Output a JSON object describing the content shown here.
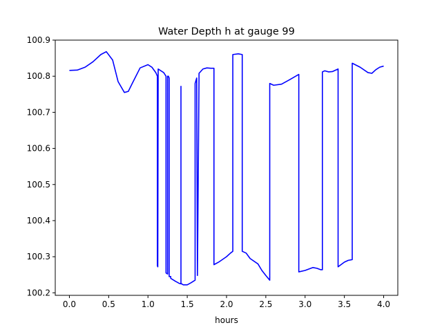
{
  "chart_data": {
    "type": "line",
    "title": "Water Depth h at gauge 99",
    "xlabel": "hours",
    "ylabel": "",
    "xlim": [
      -0.18,
      4.18
    ],
    "ylim": [
      100.193,
      100.9
    ],
    "grid": false,
    "legend": "none",
    "xticks": [
      0.0,
      0.5,
      1.0,
      1.5,
      2.0,
      2.5,
      3.0,
      3.5,
      4.0
    ],
    "xtick_labels": [
      "0.0",
      "0.5",
      "1.0",
      "1.5",
      "2.0",
      "2.5",
      "3.0",
      "3.5",
      "4.0"
    ],
    "yticks": [
      100.2,
      100.3,
      100.4,
      100.5,
      100.6,
      100.7,
      100.8,
      100.9
    ],
    "ytick_labels": [
      "100.2",
      "100.3",
      "100.4",
      "100.5",
      "100.6",
      "100.7",
      "100.8",
      "100.9"
    ],
    "series": [
      {
        "color": "#0000ff",
        "x": [
          0.0,
          0.1,
          0.2,
          0.3,
          0.4,
          0.47,
          0.55,
          0.62,
          0.7,
          0.75,
          0.8,
          0.9,
          1.0,
          1.05,
          1.1,
          1.12,
          1.12,
          1.125,
          1.13,
          1.13,
          1.2,
          1.23,
          1.23,
          1.25,
          1.25,
          1.26,
          1.27,
          1.27,
          1.29,
          1.29,
          1.35,
          1.4,
          1.42,
          1.42,
          1.42,
          1.45,
          1.5,
          1.55,
          1.6,
          1.6,
          1.62,
          1.63,
          1.63,
          1.65,
          1.65,
          1.7,
          1.75,
          1.8,
          1.84,
          1.84,
          1.9,
          2.0,
          2.05,
          2.08,
          2.08,
          2.15,
          2.2,
          2.2,
          2.25,
          2.3,
          2.4,
          2.45,
          2.5,
          2.55,
          2.55,
          2.6,
          2.7,
          2.8,
          2.92,
          2.92,
          3.0,
          3.1,
          3.15,
          3.2,
          3.22,
          3.22,
          3.25,
          3.3,
          3.35,
          3.42,
          3.42,
          3.5,
          3.55,
          3.6,
          3.6,
          3.7,
          3.8,
          3.85,
          3.9,
          3.95,
          4.0
        ],
        "y": [
          100.816,
          100.817,
          100.825,
          100.84,
          100.86,
          100.868,
          100.845,
          100.785,
          100.755,
          100.758,
          100.78,
          100.823,
          100.832,
          100.825,
          100.81,
          100.8,
          100.275,
          100.272,
          100.82,
          100.82,
          100.81,
          100.8,
          100.255,
          100.252,
          100.8,
          100.8,
          100.795,
          100.245,
          100.245,
          100.24,
          100.232,
          100.226,
          100.225,
          100.772,
          100.226,
          100.222,
          100.222,
          100.228,
          100.235,
          100.78,
          100.795,
          100.25,
          100.248,
          100.795,
          100.808,
          100.82,
          100.823,
          100.822,
          100.822,
          100.278,
          100.285,
          100.3,
          100.31,
          100.315,
          100.86,
          100.862,
          100.86,
          100.315,
          100.31,
          100.295,
          100.28,
          100.262,
          100.248,
          100.235,
          100.78,
          100.775,
          100.778,
          100.79,
          100.805,
          100.258,
          100.262,
          100.27,
          100.268,
          100.264,
          100.264,
          100.812,
          100.815,
          100.812,
          100.813,
          100.82,
          100.272,
          100.285,
          100.29,
          100.292,
          100.836,
          100.825,
          100.81,
          100.808,
          100.818,
          100.825,
          100.828
        ]
      }
    ]
  }
}
